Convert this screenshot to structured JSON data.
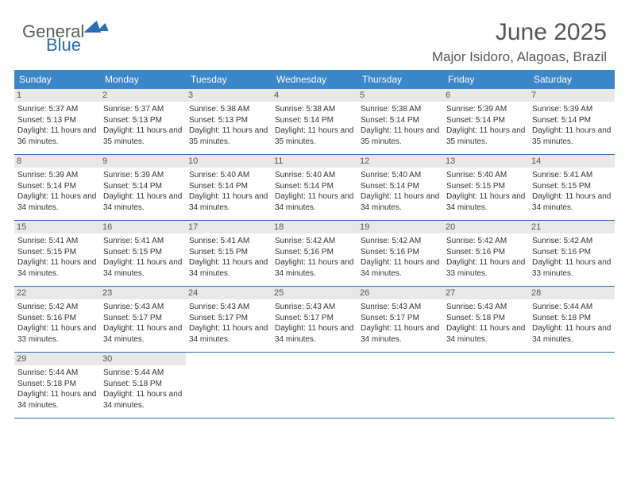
{
  "logo": {
    "part1": "General",
    "part2": "Blue"
  },
  "title": "June 2025",
  "location": "Major Isidoro, Alagoas, Brazil",
  "header_bg": "#3b87c8",
  "border_color": "#2d6db3",
  "daynum_bg": "#e8e8e8",
  "days_of_week": [
    "Sunday",
    "Monday",
    "Tuesday",
    "Wednesday",
    "Thursday",
    "Friday",
    "Saturday"
  ],
  "weeks": [
    [
      {
        "n": "1",
        "sr": "5:37 AM",
        "ss": "5:13 PM",
        "dl": "11 hours and 36 minutes."
      },
      {
        "n": "2",
        "sr": "5:37 AM",
        "ss": "5:13 PM",
        "dl": "11 hours and 35 minutes."
      },
      {
        "n": "3",
        "sr": "5:38 AM",
        "ss": "5:13 PM",
        "dl": "11 hours and 35 minutes."
      },
      {
        "n": "4",
        "sr": "5:38 AM",
        "ss": "5:14 PM",
        "dl": "11 hours and 35 minutes."
      },
      {
        "n": "5",
        "sr": "5:38 AM",
        "ss": "5:14 PM",
        "dl": "11 hours and 35 minutes."
      },
      {
        "n": "6",
        "sr": "5:39 AM",
        "ss": "5:14 PM",
        "dl": "11 hours and 35 minutes."
      },
      {
        "n": "7",
        "sr": "5:39 AM",
        "ss": "5:14 PM",
        "dl": "11 hours and 35 minutes."
      }
    ],
    [
      {
        "n": "8",
        "sr": "5:39 AM",
        "ss": "5:14 PM",
        "dl": "11 hours and 34 minutes."
      },
      {
        "n": "9",
        "sr": "5:39 AM",
        "ss": "5:14 PM",
        "dl": "11 hours and 34 minutes."
      },
      {
        "n": "10",
        "sr": "5:40 AM",
        "ss": "5:14 PM",
        "dl": "11 hours and 34 minutes."
      },
      {
        "n": "11",
        "sr": "5:40 AM",
        "ss": "5:14 PM",
        "dl": "11 hours and 34 minutes."
      },
      {
        "n": "12",
        "sr": "5:40 AM",
        "ss": "5:14 PM",
        "dl": "11 hours and 34 minutes."
      },
      {
        "n": "13",
        "sr": "5:40 AM",
        "ss": "5:15 PM",
        "dl": "11 hours and 34 minutes."
      },
      {
        "n": "14",
        "sr": "5:41 AM",
        "ss": "5:15 PM",
        "dl": "11 hours and 34 minutes."
      }
    ],
    [
      {
        "n": "15",
        "sr": "5:41 AM",
        "ss": "5:15 PM",
        "dl": "11 hours and 34 minutes."
      },
      {
        "n": "16",
        "sr": "5:41 AM",
        "ss": "5:15 PM",
        "dl": "11 hours and 34 minutes."
      },
      {
        "n": "17",
        "sr": "5:41 AM",
        "ss": "5:15 PM",
        "dl": "11 hours and 34 minutes."
      },
      {
        "n": "18",
        "sr": "5:42 AM",
        "ss": "5:16 PM",
        "dl": "11 hours and 34 minutes."
      },
      {
        "n": "19",
        "sr": "5:42 AM",
        "ss": "5:16 PM",
        "dl": "11 hours and 34 minutes."
      },
      {
        "n": "20",
        "sr": "5:42 AM",
        "ss": "5:16 PM",
        "dl": "11 hours and 33 minutes."
      },
      {
        "n": "21",
        "sr": "5:42 AM",
        "ss": "5:16 PM",
        "dl": "11 hours and 33 minutes."
      }
    ],
    [
      {
        "n": "22",
        "sr": "5:42 AM",
        "ss": "5:16 PM",
        "dl": "11 hours and 33 minutes."
      },
      {
        "n": "23",
        "sr": "5:43 AM",
        "ss": "5:17 PM",
        "dl": "11 hours and 34 minutes."
      },
      {
        "n": "24",
        "sr": "5:43 AM",
        "ss": "5:17 PM",
        "dl": "11 hours and 34 minutes."
      },
      {
        "n": "25",
        "sr": "5:43 AM",
        "ss": "5:17 PM",
        "dl": "11 hours and 34 minutes."
      },
      {
        "n": "26",
        "sr": "5:43 AM",
        "ss": "5:17 PM",
        "dl": "11 hours and 34 minutes."
      },
      {
        "n": "27",
        "sr": "5:43 AM",
        "ss": "5:18 PM",
        "dl": "11 hours and 34 minutes."
      },
      {
        "n": "28",
        "sr": "5:44 AM",
        "ss": "5:18 PM",
        "dl": "11 hours and 34 minutes."
      }
    ],
    [
      {
        "n": "29",
        "sr": "5:44 AM",
        "ss": "5:18 PM",
        "dl": "11 hours and 34 minutes."
      },
      {
        "n": "30",
        "sr": "5:44 AM",
        "ss": "5:18 PM",
        "dl": "11 hours and 34 minutes."
      },
      null,
      null,
      null,
      null,
      null
    ]
  ],
  "labels": {
    "sunrise": "Sunrise:",
    "sunset": "Sunset:",
    "daylight": "Daylight:"
  }
}
